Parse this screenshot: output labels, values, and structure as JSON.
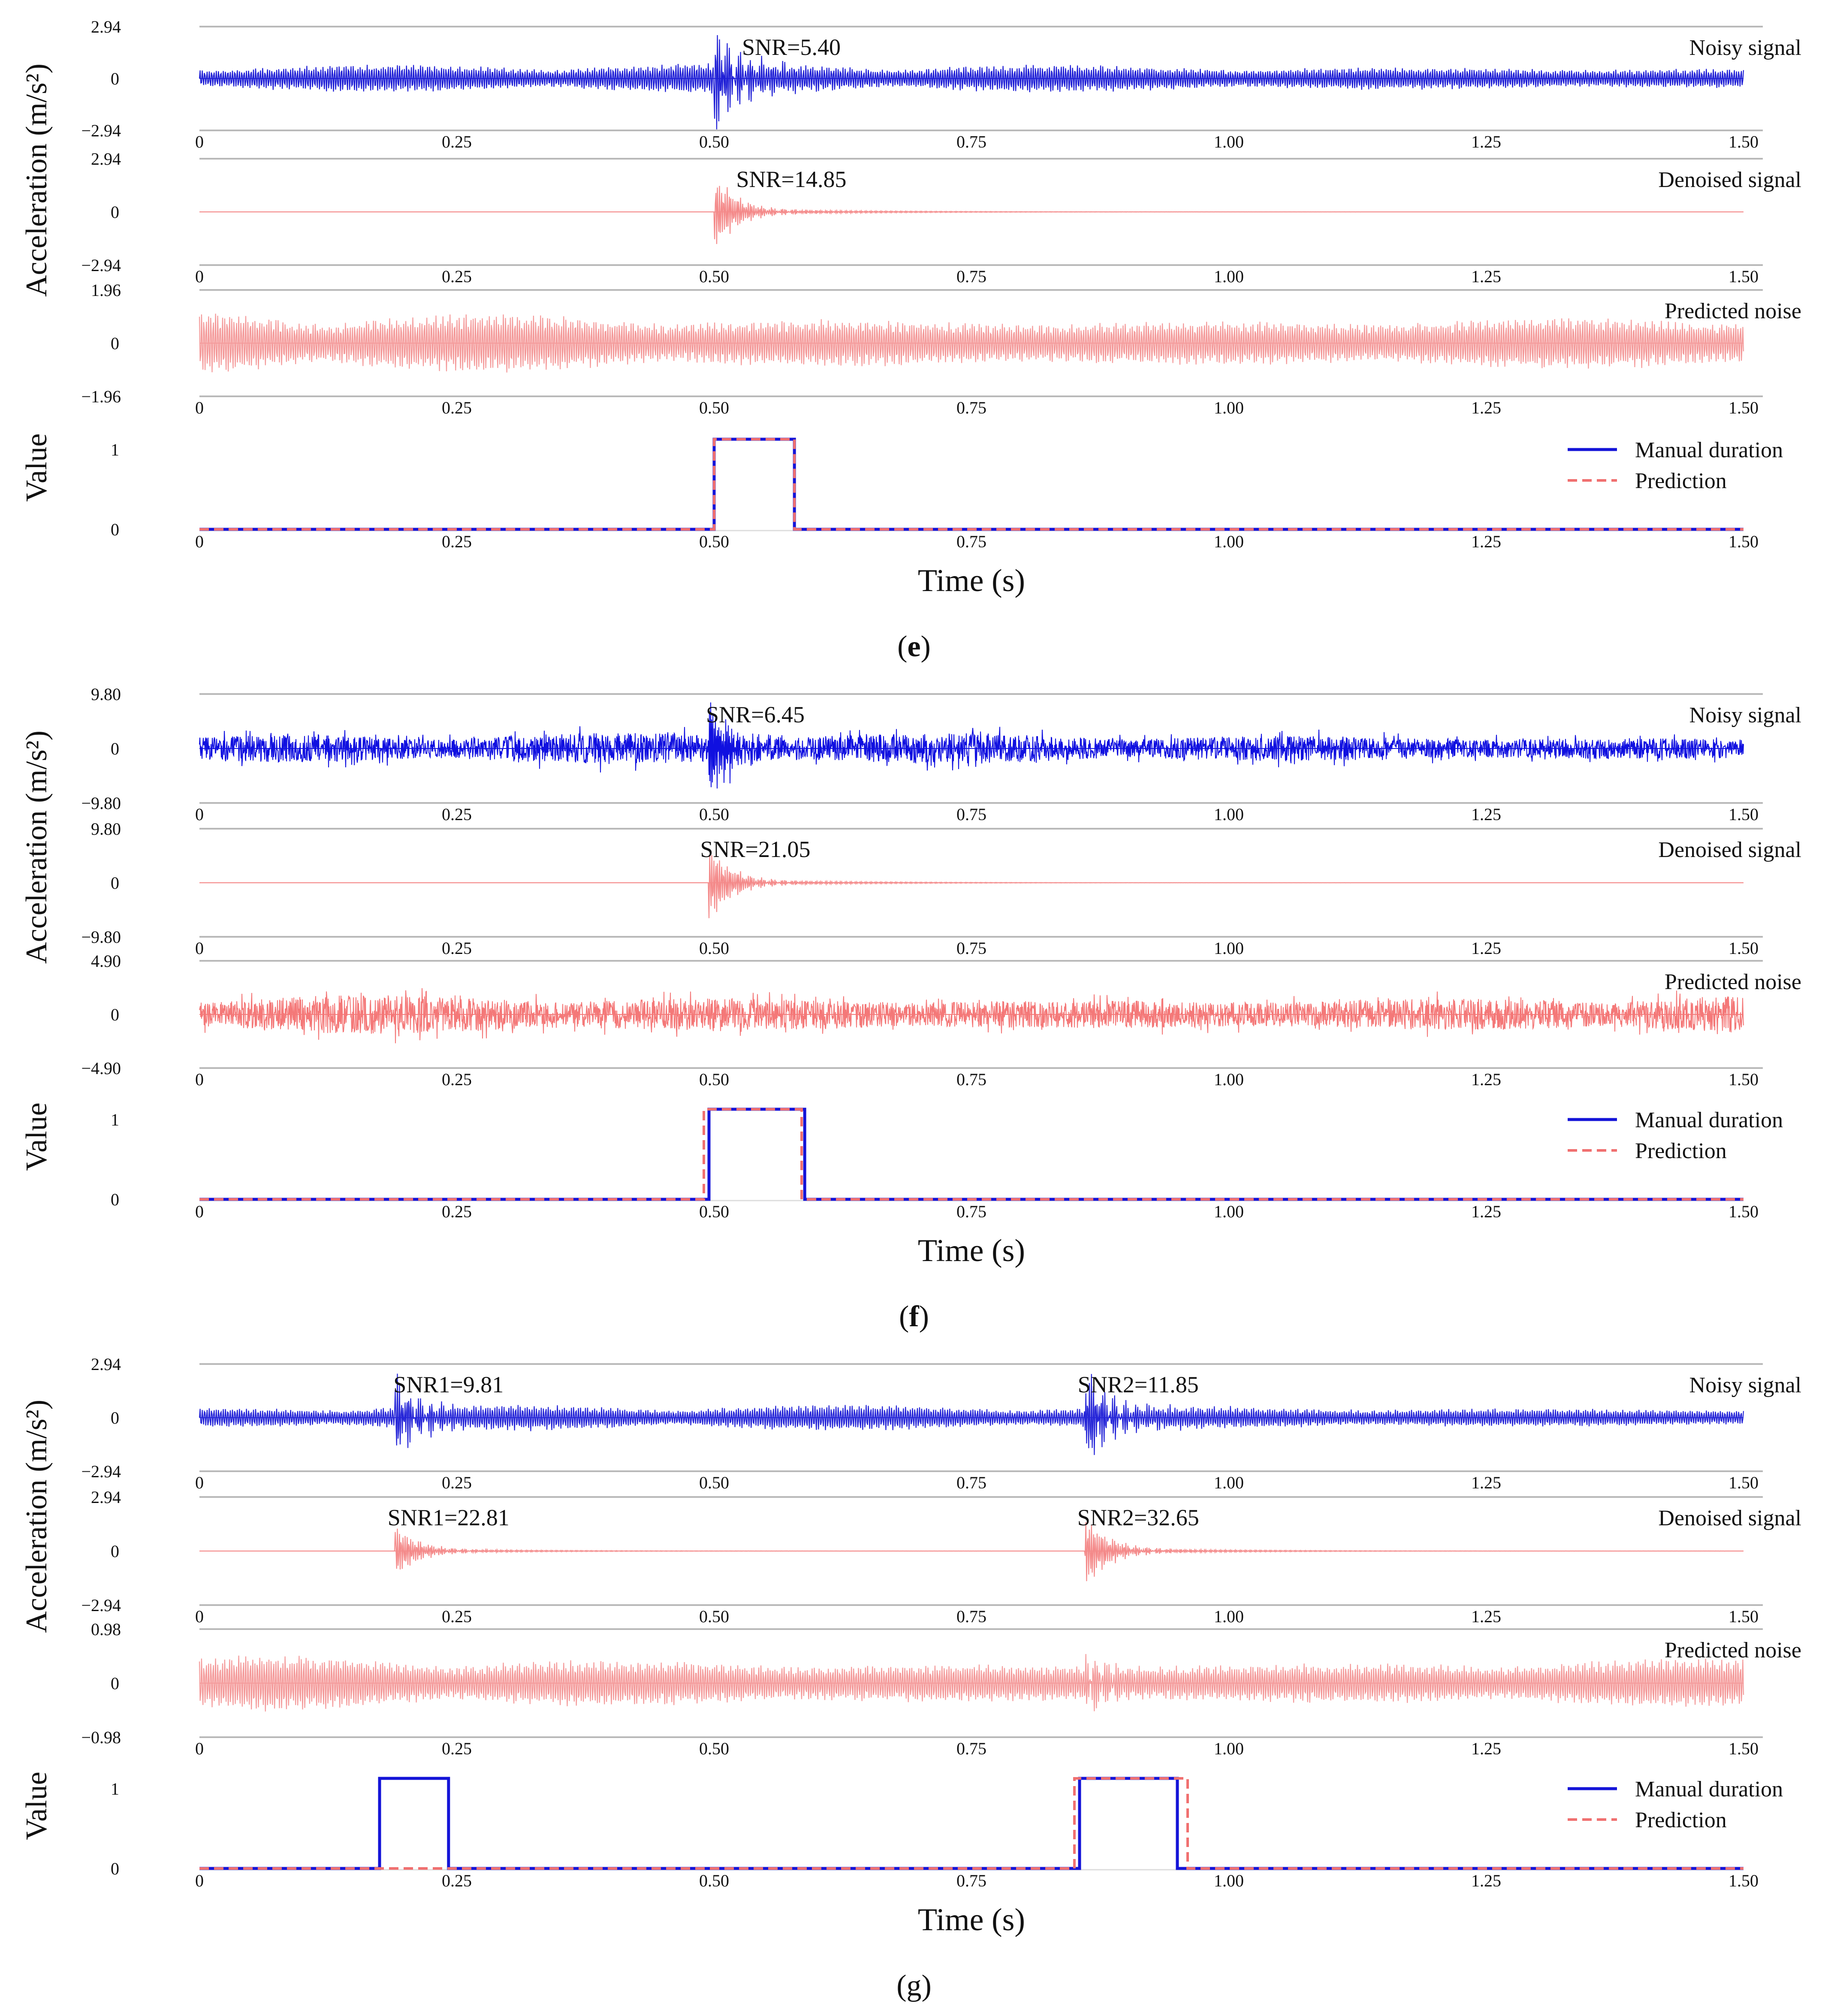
{
  "chart_data": [
    {
      "type": "line",
      "panel_label": "(e)",
      "caption_letter": "e",
      "caption_bold": true,
      "acc_ylabel": "Acceleration (m/s²)",
      "dur_ylabel": "Value",
      "xlabel": "Time (s)",
      "xlim": [
        0,
        1.5
      ],
      "xticks": [
        "0",
        "0.25",
        "0.50",
        "0.75",
        "1.00",
        "1.25",
        "1.50"
      ],
      "rows": [
        {
          "name": "Noisy signal",
          "color": "#1f1fd6",
          "ylim": [
            -2.94,
            2.94
          ],
          "yticks": [
            "2.94",
            "0",
            "−2.94"
          ],
          "snr": [
            {
              "t": 0.575,
              "text": "SNR=5.40"
            }
          ],
          "events": [
            {
              "t": 0.5,
              "amp": 2.9
            }
          ],
          "noise_amp": 0.9,
          "dense": false
        },
        {
          "name": "Denoised signal",
          "color": "#f48a8a",
          "ylim": [
            -2.94,
            2.94
          ],
          "yticks": [
            "2.94",
            "0",
            "−2.94"
          ],
          "snr": [
            {
              "t": 0.575,
              "text": "SNR=14.85"
            }
          ],
          "events": [
            {
              "t": 0.5,
              "amp": 2.3
            }
          ],
          "noise_amp": 0.0,
          "dense": false
        },
        {
          "name": "Predicted noise",
          "color": "#f49a9a",
          "ylim": [
            -1.96,
            1.96
          ],
          "yticks": [
            "1.96",
            "0",
            "−1.96"
          ],
          "snr": [],
          "events": [],
          "noise_amp": 1.3,
          "dense": false
        }
      ],
      "duration": {
        "yticks": [
          "1",
          "0"
        ],
        "legend": [
          "Manual duration",
          "Prediction"
        ],
        "manual": [
          {
            "start": 0.5,
            "end": 0.578
          }
        ],
        "predicted": [
          {
            "start": 0.5,
            "end": 0.578
          }
        ]
      }
    },
    {
      "type": "line",
      "panel_label": "(f)",
      "caption_letter": "f",
      "caption_bold": true,
      "acc_ylabel": "Acceleration (m/s²)",
      "dur_ylabel": "Value",
      "xlabel": "Time (s)",
      "xlim": [
        0,
        1.5
      ],
      "xticks": [
        "0",
        "0.25",
        "0.50",
        "0.75",
        "1.00",
        "1.25",
        "1.50"
      ],
      "rows": [
        {
          "name": "Noisy signal",
          "color": "#1010e0",
          "ylim": [
            -9.8,
            9.8
          ],
          "yticks": [
            "9.80",
            "0",
            "−9.80"
          ],
          "snr": [
            {
              "t": 0.54,
              "text": "SNR=6.45"
            }
          ],
          "events": [
            {
              "t": 0.495,
              "amp": 9.2
            }
          ],
          "noise_amp": 3.2,
          "dense": true
        },
        {
          "name": "Denoised signal",
          "color": "#f48a8a",
          "ylim": [
            -9.8,
            9.8
          ],
          "yticks": [
            "9.80",
            "0",
            "−9.80"
          ],
          "snr": [
            {
              "t": 0.54,
              "text": "SNR=21.05"
            }
          ],
          "events": [
            {
              "t": 0.495,
              "amp": 7.5
            }
          ],
          "noise_amp": 0.0,
          "dense": false
        },
        {
          "name": "Predicted noise",
          "color": "#f47878",
          "ylim": [
            -4.9,
            4.9
          ],
          "yticks": [
            "4.90",
            "0",
            "−4.90"
          ],
          "snr": [],
          "events": [],
          "noise_amp": 2.2,
          "dense": true
        }
      ],
      "duration": {
        "yticks": [
          "1",
          "0"
        ],
        "legend": [
          "Manual duration",
          "Prediction"
        ],
        "manual": [
          {
            "start": 0.495,
            "end": 0.588
          }
        ],
        "predicted": [
          {
            "start": 0.49,
            "end": 0.585
          }
        ]
      }
    },
    {
      "type": "line",
      "panel_label": "(g)",
      "caption_letter": "g",
      "caption_bold": false,
      "acc_ylabel": "Acceleration (m/s²)",
      "dur_ylabel": "Value",
      "xlabel": "Time (s)",
      "xlim": [
        0,
        1.5
      ],
      "xticks": [
        "0",
        "0.25",
        "0.50",
        "0.75",
        "1.00",
        "1.25",
        "1.50"
      ],
      "rows": [
        {
          "name": "Noisy signal",
          "color": "#2626d8",
          "ylim": [
            -2.94,
            2.94
          ],
          "yticks": [
            "2.94",
            "0",
            "−2.94"
          ],
          "snr": [
            {
              "t": 0.242,
              "text": "SNR1=9.81"
            },
            {
              "t": 0.912,
              "text": "SNR2=11.85"
            }
          ],
          "events": [
            {
              "t": 0.19,
              "amp": 2.1
            },
            {
              "t": 0.86,
              "amp": 2.8
            }
          ],
          "noise_amp": 0.75,
          "dense": false
        },
        {
          "name": "Denoised signal",
          "color": "#f48a8a",
          "ylim": [
            -2.94,
            2.94
          ],
          "yticks": [
            "2.94",
            "0",
            "−2.94"
          ],
          "snr": [
            {
              "t": 0.242,
              "text": "SNR1=22.81"
            },
            {
              "t": 0.912,
              "text": "SNR2=32.65"
            }
          ],
          "events": [
            {
              "t": 0.19,
              "amp": 1.6
            },
            {
              "t": 0.86,
              "amp": 2.2
            }
          ],
          "noise_amp": 0.0,
          "dense": false
        },
        {
          "name": "Predicted noise",
          "color": "#f49a9a",
          "ylim": [
            -0.98,
            0.98
          ],
          "yticks": [
            "0.98",
            "0",
            "−0.98"
          ],
          "snr": [],
          "events": [
            {
              "t": 0.86,
              "amp": 0.5
            }
          ],
          "noise_amp": 0.55,
          "dense": false
        }
      ],
      "duration": {
        "yticks": [
          "1",
          "0"
        ],
        "legend": [
          "Manual duration",
          "Prediction"
        ],
        "manual": [
          {
            "start": 0.175,
            "end": 0.242
          },
          {
            "start": 0.855,
            "end": 0.95
          }
        ],
        "predicted": [
          {
            "start": 0.85,
            "end": 0.96
          }
        ]
      }
    }
  ]
}
